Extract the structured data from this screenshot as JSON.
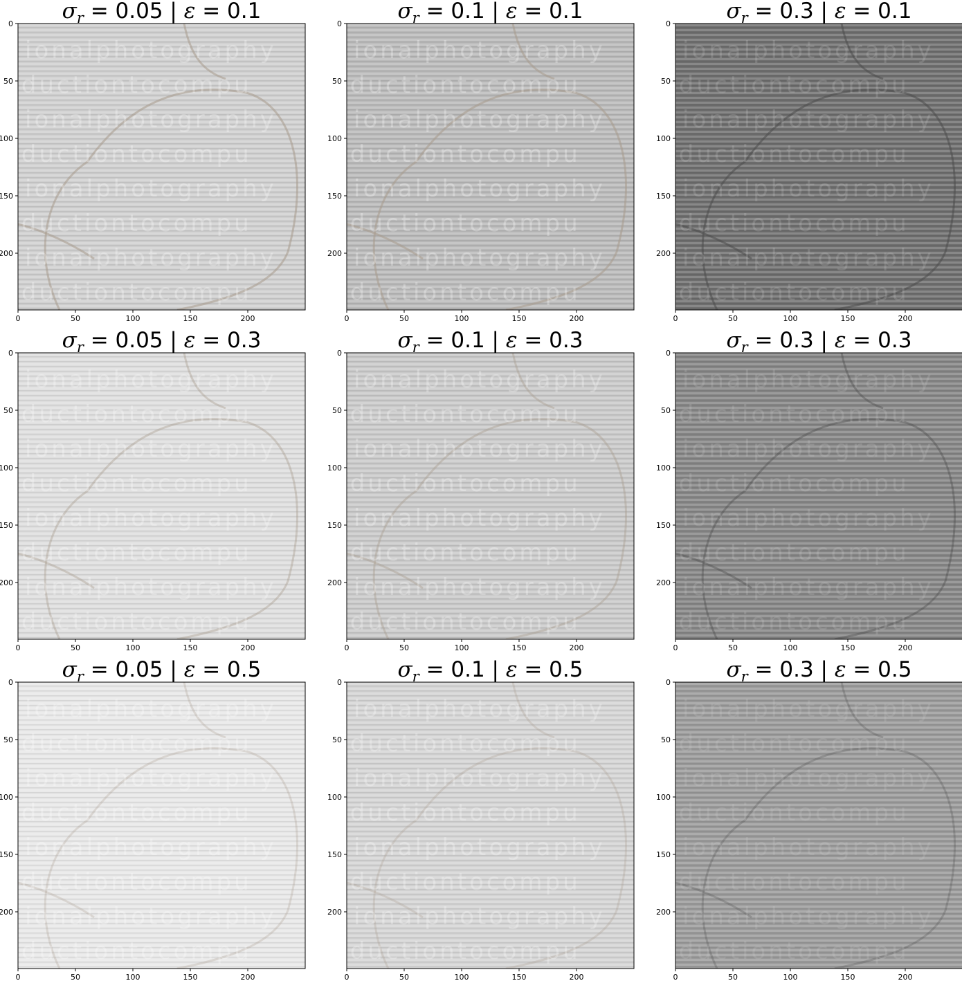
{
  "figure": {
    "panels": [
      {
        "sigma_r": "0.05",
        "epsilon": "0.1",
        "tone": "#cfcfcf"
      },
      {
        "sigma_r": "0.1",
        "epsilon": "0.1",
        "tone": "#b9b9b9"
      },
      {
        "sigma_r": "0.3",
        "epsilon": "0.1",
        "tone": "#6e6e6e"
      },
      {
        "sigma_r": "0.05",
        "epsilon": "0.3",
        "tone": "#dedede"
      },
      {
        "sigma_r": "0.1",
        "epsilon": "0.3",
        "tone": "#c9c9c9"
      },
      {
        "sigma_r": "0.3",
        "epsilon": "0.3",
        "tone": "#858585"
      },
      {
        "sigma_r": "0.05",
        "epsilon": "0.5",
        "tone": "#e8e8e8"
      },
      {
        "sigma_r": "0.1",
        "epsilon": "0.5",
        "tone": "#d4d4d4"
      },
      {
        "sigma_r": "0.3",
        "epsilon": "0.5",
        "tone": "#9a9a9a"
      }
    ],
    "x_ticks": [
      "0",
      "50",
      "100",
      "150",
      "200"
    ],
    "y_ticks": [
      "0",
      "50",
      "100",
      "150",
      "200"
    ],
    "watermark_lines": [
      "ionalphotography",
      "oductiontocompu",
      "ionalphotography",
      "oductiontocompu",
      "ionalphotography",
      "oductiontocompu",
      "ionalphotography",
      "oductiontocompu"
    ]
  }
}
